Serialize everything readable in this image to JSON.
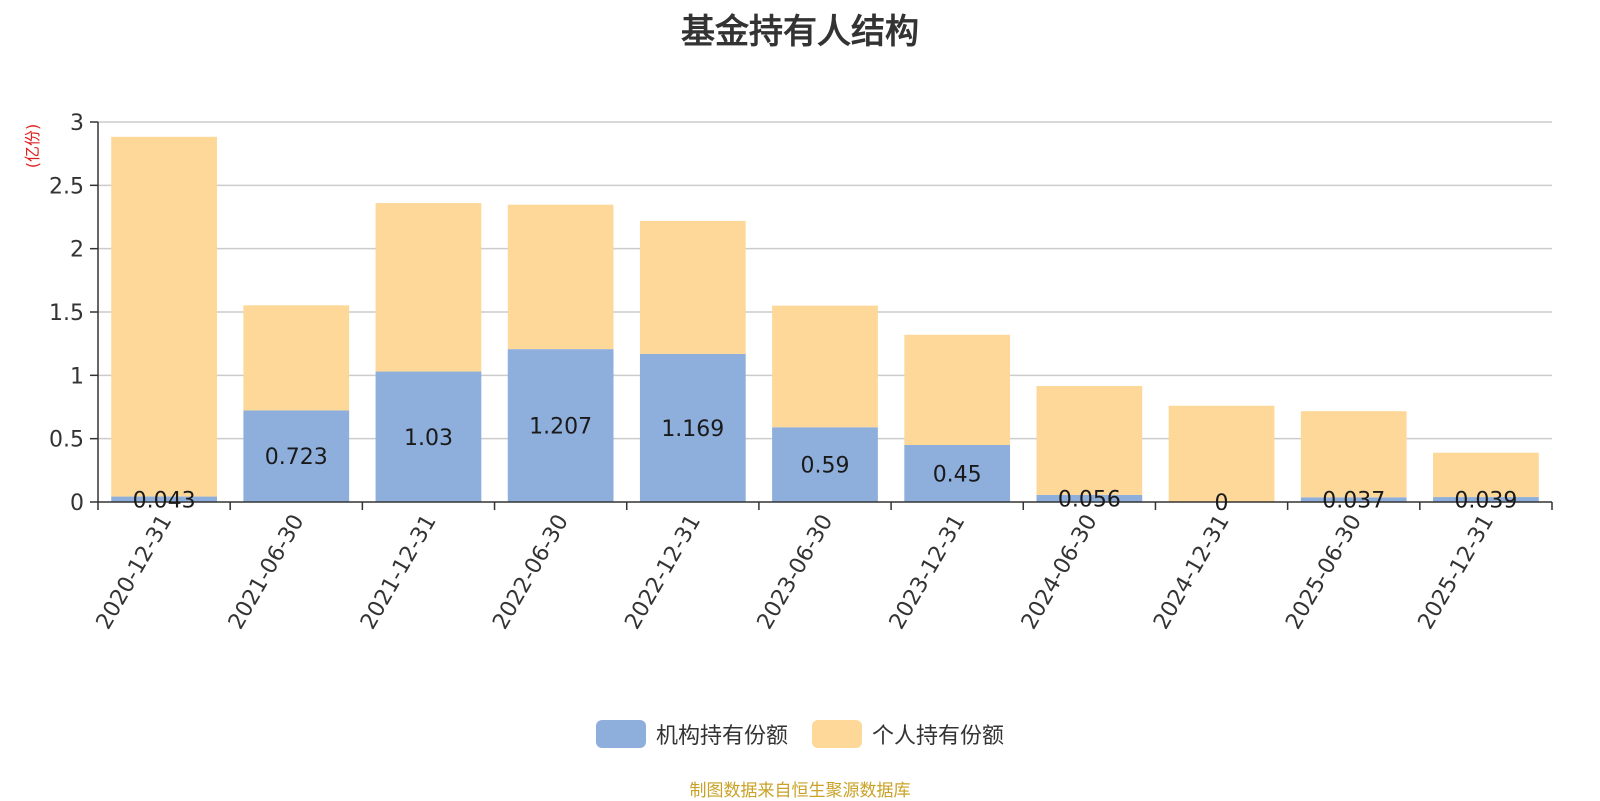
{
  "chart_data": {
    "type": "bar",
    "stacked": true,
    "title": "基金持有人结构",
    "unit_label": "(亿份)",
    "categories": [
      "2020-12-31",
      "2021-06-30",
      "2021-12-31",
      "2022-06-30",
      "2022-12-31",
      "2023-06-30",
      "2023-12-31",
      "2024-06-30",
      "2024-12-31",
      "2025-06-30",
      "2025-12-31"
    ],
    "ylim": [
      0,
      3
    ],
    "yticks": [
      "0",
      "0.5",
      "1",
      "1.5",
      "2",
      "2.5",
      "3"
    ],
    "grid": true,
    "legend_position": "bottom",
    "series": [
      {
        "name": "机构持有份额",
        "color": "#8eaedc",
        "values": [
          0.043,
          0.723,
          1.03,
          1.207,
          1.169,
          0.59,
          0.45,
          0.056,
          0,
          0.037,
          0.039
        ],
        "labels": [
          "0.043",
          "0.723",
          "1.03",
          "1.207",
          "1.169",
          "0.59",
          "0.45",
          "0.056",
          "0",
          "0.037",
          "0.039"
        ]
      },
      {
        "name": "个人持有份额",
        "color": "#fdd898",
        "values": [
          2.84,
          0.83,
          1.33,
          1.14,
          1.05,
          0.96,
          0.87,
          0.86,
          0.76,
          0.68,
          0.35
        ]
      }
    ]
  },
  "source": "制图数据来自恒生聚源数据库"
}
